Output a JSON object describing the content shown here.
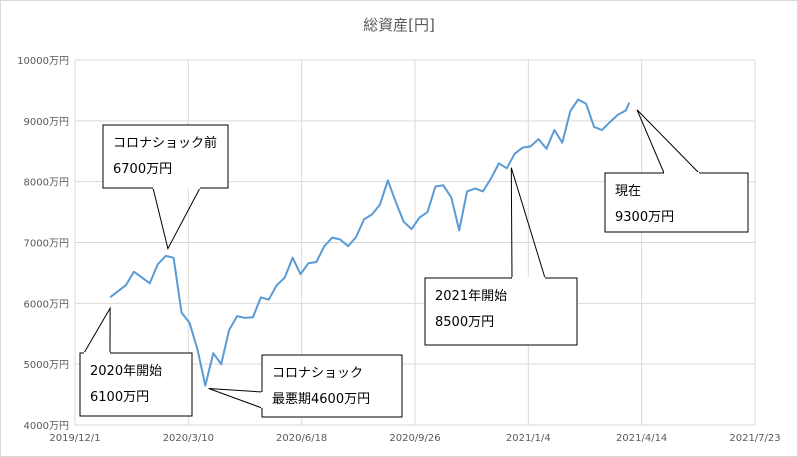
{
  "chart_data": {
    "type": "line",
    "title": "総資産[円]",
    "xlabel": "",
    "ylabel": "",
    "y_ticks": [
      "4000万円",
      "5000万円",
      "6000万円",
      "7000万円",
      "8000万円",
      "9000万円",
      "10000万円"
    ],
    "x_ticks": [
      "2019/12/1",
      "2020/3/10",
      "2020/6/18",
      "2020/9/26",
      "2021/1/4",
      "2021/4/14",
      "2021/7/23"
    ],
    "ylim": [
      4000,
      10000
    ],
    "xlim": [
      "2019-12-01",
      "2021-07-23"
    ],
    "grid": true,
    "legend": "none",
    "line_color": "#5b9bd5",
    "series": [
      {
        "points": [
          [
            "2020-01-01",
            6100
          ],
          [
            "2020-01-15",
            6300
          ],
          [
            "2020-01-22",
            6520
          ],
          [
            "2020-02-05",
            6330
          ],
          [
            "2020-02-12",
            6640
          ],
          [
            "2020-02-19",
            6780
          ],
          [
            "2020-02-26",
            6750
          ],
          [
            "2020-03-04",
            5850
          ],
          [
            "2020-03-11",
            5680
          ],
          [
            "2020-03-18",
            5250
          ],
          [
            "2020-03-25",
            4650
          ],
          [
            "2020-04-01",
            5180
          ],
          [
            "2020-04-08",
            5000
          ],
          [
            "2020-04-15",
            5560
          ],
          [
            "2020-04-22",
            5790
          ],
          [
            "2020-04-29",
            5760
          ],
          [
            "2020-05-06",
            5770
          ],
          [
            "2020-05-13",
            6100
          ],
          [
            "2020-05-20",
            6060
          ],
          [
            "2020-05-27",
            6300
          ],
          [
            "2020-06-03",
            6420
          ],
          [
            "2020-06-10",
            6750
          ],
          [
            "2020-06-17",
            6480
          ],
          [
            "2020-06-24",
            6660
          ],
          [
            "2020-07-01",
            6680
          ],
          [
            "2020-07-08",
            6940
          ],
          [
            "2020-07-15",
            7080
          ],
          [
            "2020-07-22",
            7050
          ],
          [
            "2020-07-29",
            6940
          ],
          [
            "2020-08-05",
            7090
          ],
          [
            "2020-08-12",
            7380
          ],
          [
            "2020-08-19",
            7460
          ],
          [
            "2020-08-26",
            7620
          ],
          [
            "2020-09-02",
            8020
          ],
          [
            "2020-09-09",
            7670
          ],
          [
            "2020-09-16",
            7340
          ],
          [
            "2020-09-23",
            7220
          ],
          [
            "2020-09-30",
            7410
          ],
          [
            "2020-10-07",
            7500
          ],
          [
            "2020-10-14",
            7920
          ],
          [
            "2020-10-21",
            7940
          ],
          [
            "2020-10-28",
            7740
          ],
          [
            "2020-11-04",
            7200
          ],
          [
            "2020-11-11",
            7840
          ],
          [
            "2020-11-18",
            7890
          ],
          [
            "2020-11-25",
            7840
          ],
          [
            "2020-12-02",
            8050
          ],
          [
            "2020-12-09",
            8300
          ],
          [
            "2020-12-16",
            8220
          ],
          [
            "2020-12-23",
            8460
          ],
          [
            "2020-12-30",
            8560
          ],
          [
            "2021-01-06",
            8580
          ],
          [
            "2021-01-13",
            8700
          ],
          [
            "2021-01-20",
            8540
          ],
          [
            "2021-01-27",
            8850
          ],
          [
            "2021-02-03",
            8640
          ],
          [
            "2021-02-10",
            9160
          ],
          [
            "2021-02-17",
            9350
          ],
          [
            "2021-02-24",
            9280
          ],
          [
            "2021-03-03",
            8900
          ],
          [
            "2021-03-10",
            8850
          ],
          [
            "2021-03-17",
            8980
          ],
          [
            "2021-03-24",
            9100
          ],
          [
            "2021-03-31",
            9170
          ],
          [
            "2021-04-03",
            9300
          ]
        ]
      }
    ],
    "annotations": [
      {
        "lines": [
          "コロナショック前",
          "6700万円"
        ],
        "at": [
          "2020-02-21",
          6900
        ]
      },
      {
        "lines": [
          "2020年開始",
          "6100万円"
        ],
        "at": [
          "2020-01-01",
          5920
        ]
      },
      {
        "lines": [
          "コロナショック",
          "最悪期4600万円"
        ],
        "at": [
          "2020-03-28",
          4600
        ]
      },
      {
        "lines": [
          "2021年開始",
          "8500万円"
        ],
        "at": [
          "2020-12-20",
          8230
        ]
      },
      {
        "lines": [
          "現在",
          "9300万円"
        ],
        "at": [
          "2021-04-10",
          9180
        ]
      }
    ]
  }
}
